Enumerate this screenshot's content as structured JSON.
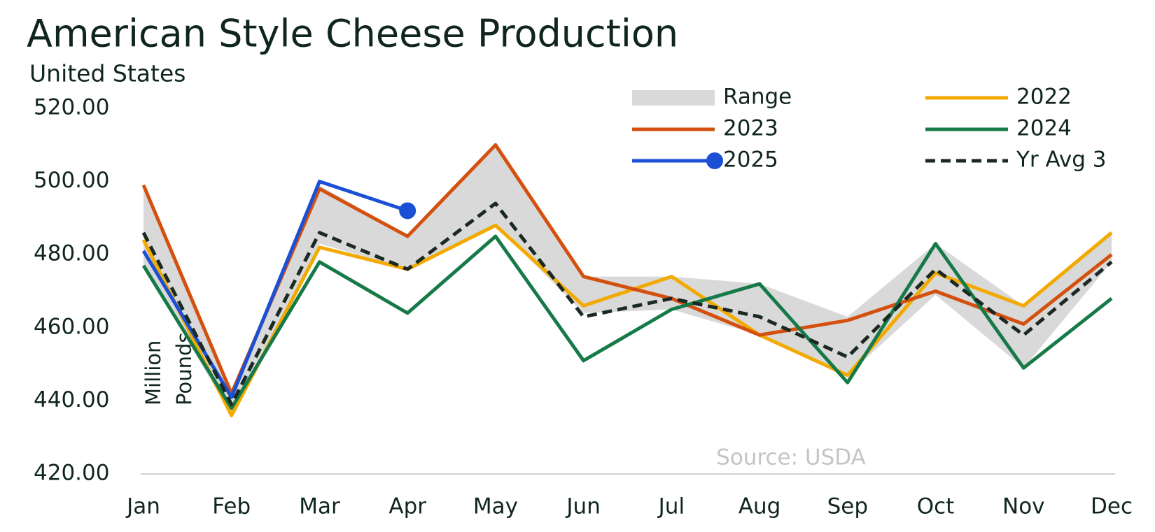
{
  "chart_data": {
    "type": "line",
    "title": "American Style Cheese Production",
    "subtitle": "United States",
    "y_label": [
      "Million",
      "Pounds"
    ],
    "source": "Source: USDA",
    "categories": [
      "Jan",
      "Feb",
      "Mar",
      "Apr",
      "May",
      "Jun",
      "Jul",
      "Aug",
      "Sep",
      "Oct",
      "Nov",
      "Dec"
    ],
    "ylim": [
      420,
      520
    ],
    "yticks": [
      {
        "value": 420,
        "label": "420.00"
      },
      {
        "value": 440,
        "label": "440.00"
      },
      {
        "value": 460,
        "label": "460.00"
      },
      {
        "value": 480,
        "label": "480.00"
      },
      {
        "value": 500,
        "label": "500.00"
      },
      {
        "value": 520,
        "label": "520.00"
      }
    ],
    "grid": false,
    "range": {
      "name": "Range",
      "color": "#d9d9d9",
      "low": [
        477,
        436,
        483,
        476,
        488,
        464,
        465,
        458,
        447,
        469,
        449,
        478
      ],
      "high": [
        499,
        442,
        499,
        485,
        510,
        474,
        474,
        472,
        463,
        483,
        466,
        486
      ]
    },
    "series": [
      {
        "name": "2022",
        "color": "#f2a900",
        "values": [
          484,
          436,
          482,
          476,
          488,
          466,
          474,
          458,
          447,
          475,
          466,
          486
        ]
      },
      {
        "name": "2023",
        "color": "#d4500f",
        "values": [
          499,
          442,
          498,
          485,
          510,
          474,
          468,
          458,
          462,
          470,
          461,
          480
        ]
      },
      {
        "name": "2024",
        "color": "#167a48",
        "values": [
          477,
          438,
          478,
          464,
          485,
          451,
          465,
          472,
          445,
          483,
          449,
          468
        ]
      },
      {
        "name": "2025",
        "color": "#1a4fd6",
        "marker_last": true,
        "values": [
          481,
          441,
          500,
          492,
          null,
          null,
          null,
          null,
          null,
          null,
          null,
          null
        ]
      },
      {
        "name": "Yr Avg 3",
        "color": "#1a2a22",
        "dash": true,
        "values": [
          486,
          439,
          486,
          476,
          494,
          463,
          468,
          463,
          452,
          476,
          458,
          478
        ]
      }
    ]
  }
}
